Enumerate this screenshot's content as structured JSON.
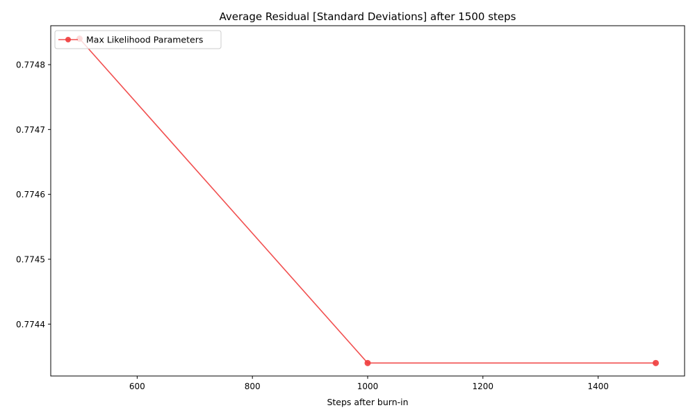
{
  "chart_data": {
    "type": "line",
    "title": "Average Residual [Standard Deviations] after 1500 steps",
    "xlabel": "Steps after burn-in",
    "ylabel": "",
    "xlim": [
      450,
      1550
    ],
    "ylim": [
      0.77432,
      0.77486
    ],
    "x_ticks": [
      600,
      800,
      1000,
      1200,
      1400
    ],
    "y_ticks": [
      0.7744,
      0.7745,
      0.7746,
      0.7747,
      0.7748
    ],
    "x_tick_labels": [
      "600",
      "800",
      "1000",
      "1200",
      "1400"
    ],
    "y_tick_labels": [
      "0.7744",
      "0.7745",
      "0.7746",
      "0.7747",
      "0.7748"
    ],
    "grid": false,
    "legend_position": "top-left",
    "series": [
      {
        "name": "Max Likelihood Parameters",
        "color": "#f03c3c",
        "marker": "circle",
        "x": [
          500,
          1000,
          1500
        ],
        "y": [
          0.77484,
          0.77434,
          0.77434
        ]
      }
    ]
  }
}
